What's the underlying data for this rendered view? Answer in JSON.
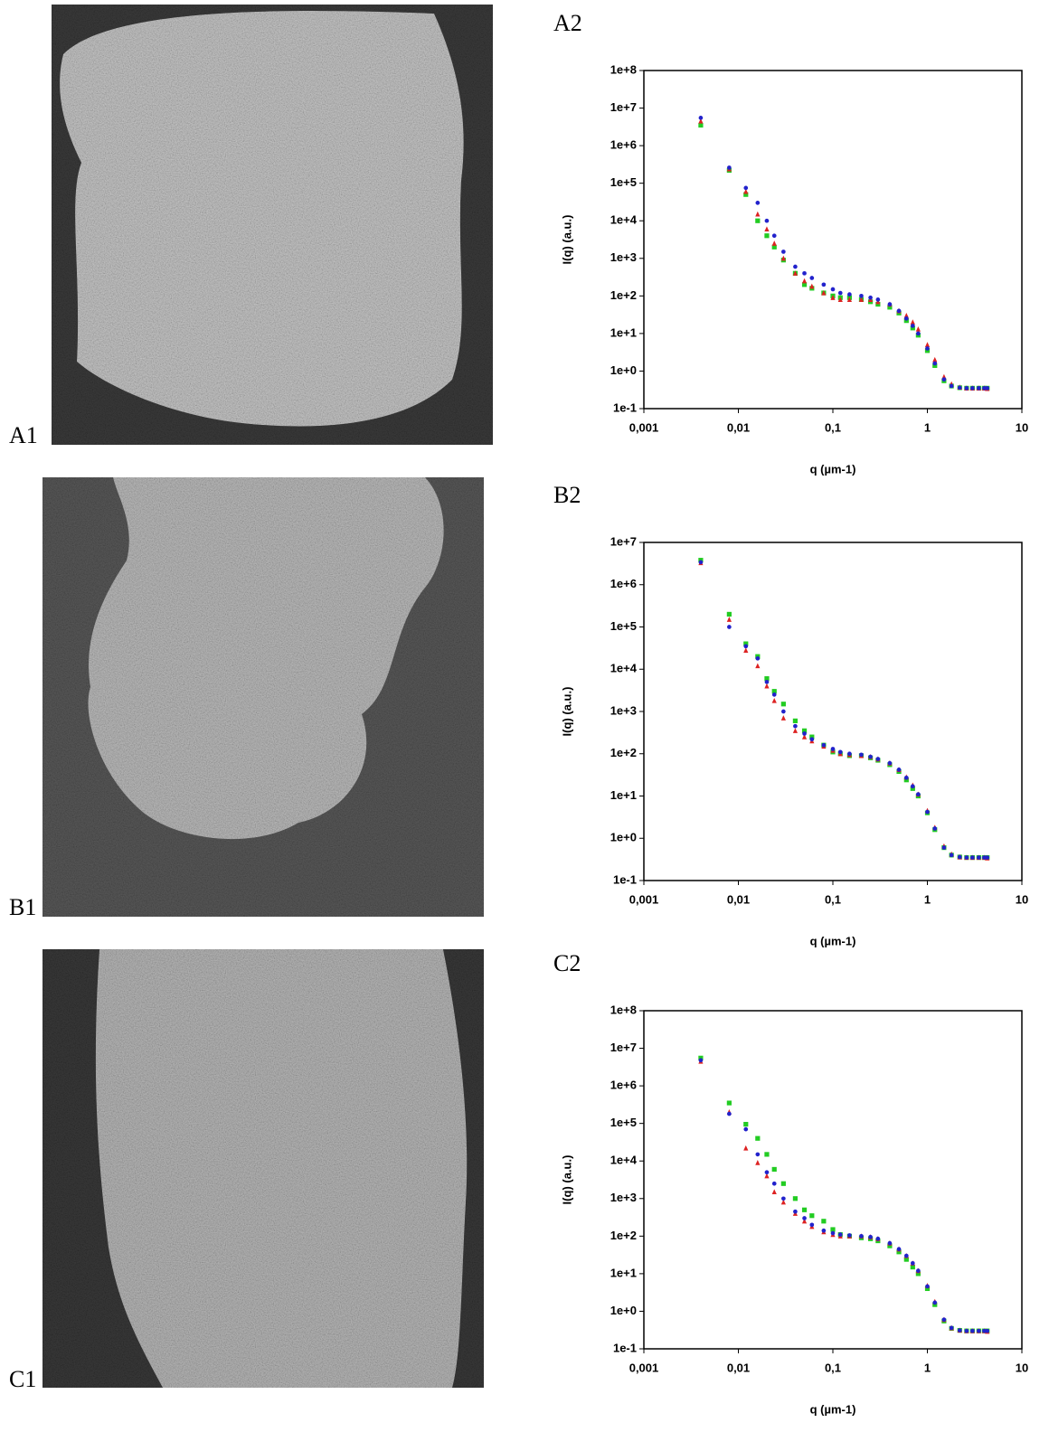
{
  "image_labels": [
    "A1",
    "B1",
    "C1"
  ],
  "chart_data": [
    {
      "type": "scatter",
      "title": "A2",
      "x_label": "q (µm-1)",
      "y_label": "I(q) (a.u.)",
      "xscale": "log",
      "yscale": "log",
      "xlim": [
        0.001,
        10
      ],
      "ylim": [
        0.1,
        100000000
      ],
      "xticks": [
        {
          "value": 0.001,
          "label": "0,001"
        },
        {
          "value": 0.01,
          "label": "0,01"
        },
        {
          "value": 0.1,
          "label": "0,1"
        },
        1,
        10
      ],
      "yticks": [
        {
          "value": 0.1,
          "label": "1e-1"
        },
        {
          "value": 1,
          "label": "1e+0"
        },
        {
          "value": 10,
          "label": "1e+1"
        },
        {
          "value": 100,
          "label": "1e+2"
        },
        {
          "value": 1000,
          "label": "1e+3"
        },
        {
          "value": 10000,
          "label": "1e+4"
        },
        {
          "value": 100000,
          "label": "1e+5"
        },
        {
          "value": 1000000,
          "label": "1e+6"
        },
        {
          "value": 10000000,
          "label": "1e+7"
        },
        {
          "value": 100000000,
          "label": "1e+8"
        }
      ],
      "x": [
        0.004,
        0.008,
        0.012,
        0.016,
        0.02,
        0.024,
        0.03,
        0.04,
        0.05,
        0.06,
        0.08,
        0.1,
        0.12,
        0.15,
        0.2,
        0.25,
        0.3,
        0.4,
        0.5,
        0.6,
        0.7,
        0.8,
        1,
        1.2,
        1.5,
        1.8,
        2.2,
        2.6,
        3,
        3.5,
        4,
        4.3
      ],
      "series": [
        {
          "color": "#22cc22",
          "marker": "square",
          "values": [
            3500000,
            220000,
            50000,
            10000,
            4000,
            2000,
            900,
            400,
            200,
            160,
            120,
            100,
            90,
            90,
            80,
            70,
            60,
            50,
            35,
            22,
            14,
            9,
            3.5,
            1.4,
            0.55,
            0.4,
            0.36,
            0.35,
            0.35,
            0.35,
            0.35,
            0.35
          ]
        },
        {
          "color": "#dd2222",
          "marker": "triangle",
          "values": [
            4500000,
            240000,
            60000,
            15000,
            6000,
            2500,
            1000,
            400,
            250,
            180,
            120,
            90,
            80,
            80,
            80,
            80,
            70,
            60,
            40,
            30,
            20,
            13,
            5,
            2,
            0.7,
            0.45,
            0.37,
            0.35,
            0.35,
            0.35,
            0.35,
            0.34
          ]
        },
        {
          "color": "#2222cc",
          "marker": "circle",
          "values": [
            5500000,
            260000,
            75000,
            30000,
            10000,
            4000,
            1500,
            600,
            400,
            300,
            200,
            150,
            120,
            110,
            100,
            90,
            80,
            60,
            40,
            25,
            16,
            10,
            4,
            1.6,
            0.6,
            0.4,
            0.36,
            0.35,
            0.35,
            0.35,
            0.35,
            0.35
          ]
        }
      ]
    },
    {
      "type": "scatter",
      "title": "B2",
      "x_label": "q (µm-1)",
      "y_label": "I(q) (a.u.)",
      "xscale": "log",
      "yscale": "log",
      "xlim": [
        0.001,
        10
      ],
      "ylim": [
        0.1,
        10000000
      ],
      "xticks": [
        {
          "value": 0.001,
          "label": "0,001"
        },
        {
          "value": 0.01,
          "label": "0,01"
        },
        {
          "value": 0.1,
          "label": "0,1"
        },
        1,
        10
      ],
      "yticks": [
        {
          "value": 0.1,
          "label": "1e-1"
        },
        {
          "value": 1,
          "label": "1e+0"
        },
        {
          "value": 10,
          "label": "1e+1"
        },
        {
          "value": 100,
          "label": "1e+2"
        },
        {
          "value": 1000,
          "label": "1e+3"
        },
        {
          "value": 10000,
          "label": "1e+4"
        },
        {
          "value": 100000,
          "label": "1e+5"
        },
        {
          "value": 1000000,
          "label": "1e+6"
        },
        {
          "value": 10000000,
          "label": "1e+7"
        }
      ],
      "x": [
        0.004,
        0.008,
        0.012,
        0.016,
        0.02,
        0.024,
        0.03,
        0.04,
        0.05,
        0.06,
        0.08,
        0.1,
        0.12,
        0.15,
        0.2,
        0.25,
        0.3,
        0.4,
        0.5,
        0.6,
        0.7,
        0.8,
        1,
        1.2,
        1.5,
        1.8,
        2.2,
        2.6,
        3,
        3.5,
        4,
        4.3
      ],
      "series": [
        {
          "color": "#22cc22",
          "marker": "square",
          "values": [
            3800000,
            200000,
            40000,
            20000,
            6000,
            3000,
            1500,
            600,
            350,
            250,
            160,
            110,
            100,
            90,
            90,
            80,
            70,
            55,
            38,
            24,
            15,
            10,
            4,
            1.6,
            0.6,
            0.4,
            0.36,
            0.35,
            0.35,
            0.35,
            0.35,
            0.35
          ]
        },
        {
          "color": "#dd2222",
          "marker": "triangle",
          "values": [
            3300000,
            150000,
            28000,
            12000,
            4000,
            1800,
            700,
            350,
            250,
            200,
            150,
            120,
            100,
            95,
            90,
            85,
            75,
            60,
            42,
            28,
            18,
            11,
            4.5,
            1.8,
            0.65,
            0.42,
            0.36,
            0.35,
            0.35,
            0.35,
            0.35,
            0.34
          ]
        },
        {
          "color": "#2222cc",
          "marker": "circle",
          "values": [
            3400000,
            100000,
            35000,
            18000,
            5000,
            2500,
            1000,
            450,
            300,
            220,
            160,
            130,
            110,
            100,
            95,
            85,
            75,
            60,
            42,
            27,
            17,
            11,
            4.2,
            1.7,
            0.6,
            0.4,
            0.36,
            0.35,
            0.35,
            0.35,
            0.35,
            0.35
          ]
        }
      ]
    },
    {
      "type": "scatter",
      "title": "C2",
      "x_label": "q (µm-1)",
      "y_label": "I(q) (a.u.)",
      "xscale": "log",
      "yscale": "log",
      "xlim": [
        0.001,
        10
      ],
      "ylim": [
        0.1,
        100000000
      ],
      "xticks": [
        {
          "value": 0.001,
          "label": "0,001"
        },
        {
          "value": 0.01,
          "label": "0,01"
        },
        {
          "value": 0.1,
          "label": "0,1"
        },
        1,
        10
      ],
      "yticks": [
        {
          "value": 0.1,
          "label": "1e-1"
        },
        {
          "value": 1,
          "label": "1e+0"
        },
        {
          "value": 10,
          "label": "1e+1"
        },
        {
          "value": 100,
          "label": "1e+2"
        },
        {
          "value": 1000,
          "label": "1e+3"
        },
        {
          "value": 10000,
          "label": "1e+4"
        },
        {
          "value": 100000,
          "label": "1e+5"
        },
        {
          "value": 1000000,
          "label": "1e+6"
        },
        {
          "value": 10000000,
          "label": "1e+7"
        },
        {
          "value": 100000000,
          "label": "1e+8"
        }
      ],
      "x": [
        0.004,
        0.008,
        0.012,
        0.016,
        0.02,
        0.024,
        0.03,
        0.04,
        0.05,
        0.06,
        0.08,
        0.1,
        0.12,
        0.15,
        0.2,
        0.25,
        0.3,
        0.4,
        0.5,
        0.6,
        0.7,
        0.8,
        1,
        1.2,
        1.5,
        1.8,
        2.2,
        2.6,
        3,
        3.5,
        4,
        4.3
      ],
      "series": [
        {
          "color": "#22cc22",
          "marker": "square",
          "values": [
            5500000,
            350000,
            95000,
            40000,
            15000,
            6000,
            2500,
            1000,
            500,
            350,
            250,
            150,
            110,
            100,
            90,
            85,
            75,
            55,
            38,
            24,
            15,
            10,
            4,
            1.5,
            0.55,
            0.35,
            0.31,
            0.3,
            0.3,
            0.3,
            0.3,
            0.3
          ]
        },
        {
          "color": "#dd2222",
          "marker": "triangle",
          "values": [
            4500000,
            200000,
            22000,
            9000,
            4000,
            1500,
            800,
            400,
            250,
            180,
            130,
            110,
            100,
            100,
            100,
            95,
            85,
            65,
            45,
            30,
            19,
            12,
            4.8,
            1.8,
            0.6,
            0.36,
            0.31,
            0.3,
            0.3,
            0.3,
            0.3,
            0.29
          ]
        },
        {
          "color": "#2222cc",
          "marker": "circle",
          "values": [
            4800000,
            180000,
            70000,
            15000,
            5000,
            2500,
            1000,
            450,
            300,
            200,
            140,
            120,
            110,
            105,
            100,
            95,
            85,
            65,
            45,
            30,
            19,
            12,
            4.6,
            1.7,
            0.6,
            0.36,
            0.31,
            0.3,
            0.3,
            0.3,
            0.3,
            0.3
          ]
        }
      ]
    }
  ]
}
